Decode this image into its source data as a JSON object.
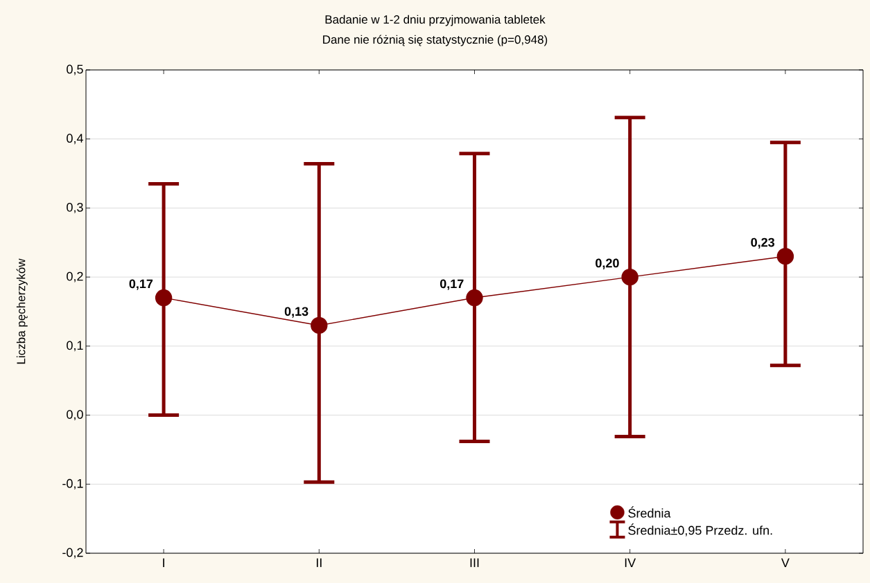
{
  "chart_data": {
    "type": "line",
    "title": "Badanie w 1-2 dniu przyjmowania tabletek",
    "subtitle": "Dane nie różnią się statystycznie (p=0,948)",
    "ylabel": "Liczba pęcherzyków",
    "categories": [
      "I",
      "II",
      "III",
      "IV",
      "V"
    ],
    "series": [
      {
        "name": "Średnia",
        "color": "#800000",
        "marker": "circle",
        "line_style": "solid",
        "values": [
          0.17,
          0.13,
          0.17,
          0.2,
          0.23
        ],
        "value_labels": [
          "0,17",
          "0,13",
          "0,17",
          "0,20",
          "0,23"
        ],
        "errors": [
          [
            0.0,
            0.335
          ],
          [
            -0.097,
            0.364
          ],
          [
            -0.038,
            0.379
          ],
          [
            -0.031,
            0.431
          ],
          [
            0.072,
            0.395
          ]
        ]
      }
    ],
    "annotations": [
      "Średnia±0,95 Przedz. ufn."
    ],
    "ylim": [
      -0.2,
      0.5
    ],
    "yticks": [
      {
        "value": -0.2,
        "label": "-0,2"
      },
      {
        "value": -0.1,
        "label": "-0,1"
      },
      {
        "value": 0,
        "label": "0,0"
      },
      {
        "value": 0.1,
        "label": "0,1"
      },
      {
        "value": 0.2,
        "label": "0,2"
      },
      {
        "value": 0.3,
        "label": "0,3"
      },
      {
        "value": 0.4,
        "label": "0,4"
      },
      {
        "value": 0.5,
        "label": "0,5"
      }
    ],
    "grid": "y",
    "legend": "bottom right"
  }
}
